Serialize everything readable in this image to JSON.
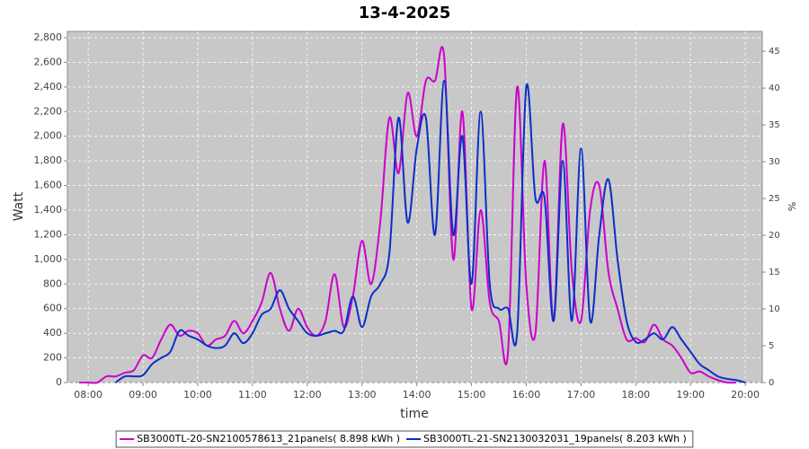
{
  "chart_data": {
    "type": "line",
    "title": "13-4-2025",
    "x_label": "time",
    "y_label": "Watt",
    "y2_label": "%",
    "x": [
      7.833,
      8,
      8.167,
      8.333,
      8.5,
      8.667,
      8.833,
      9,
      9.167,
      9.333,
      9.5,
      9.667,
      9.833,
      10,
      10.167,
      10.333,
      10.5,
      10.667,
      10.833,
      11,
      11.167,
      11.333,
      11.5,
      11.667,
      11.833,
      12,
      12.167,
      12.333,
      12.5,
      12.667,
      12.833,
      13,
      13.167,
      13.333,
      13.5,
      13.667,
      13.833,
      14,
      14.167,
      14.333,
      14.5,
      14.667,
      14.833,
      15,
      15.167,
      15.333,
      15.5,
      15.667,
      15.833,
      16,
      16.167,
      16.333,
      16.5,
      16.667,
      16.833,
      17,
      17.167,
      17.333,
      17.5,
      17.667,
      17.833,
      18,
      18.167,
      18.333,
      18.5,
      18.667,
      18.833,
      19,
      19.167,
      19.333,
      19.5,
      19.667,
      19.833,
      20
    ],
    "series": [
      {
        "name": "SB3000TL-20-SN2100578613_21panels( 8.898 kWh )",
        "color": "#cc00cc",
        "values": [
          0,
          0,
          0,
          50,
          50,
          80,
          100,
          220,
          200,
          350,
          470,
          380,
          420,
          400,
          300,
          350,
          380,
          500,
          400,
          500,
          650,
          890,
          600,
          420,
          600,
          450,
          380,
          500,
          880,
          450,
          700,
          1150,
          800,
          1300,
          2150,
          1700,
          2350,
          2000,
          2450,
          2450,
          2650,
          1000,
          2200,
          600,
          1400,
          650,
          500,
          250,
          2400,
          800,
          400,
          1800,
          500,
          2100,
          900,
          500,
          1400,
          1600,
          900,
          600,
          350,
          360,
          330,
          470,
          350,
          300,
          200,
          80,
          90,
          50,
          20,
          0,
          0,
          null
        ]
      },
      {
        "name": "SB3000TL-21-SN2130032031_19panels( 8.203 kWh )",
        "color": "#0a2fc8",
        "values": [
          null,
          null,
          null,
          null,
          0,
          50,
          50,
          60,
          150,
          200,
          250,
          420,
          380,
          350,
          300,
          280,
          300,
          400,
          320,
          400,
          550,
          600,
          750,
          600,
          500,
          400,
          380,
          400,
          420,
          420,
          700,
          450,
          700,
          800,
          1050,
          2150,
          1300,
          1900,
          2150,
          1200,
          2450,
          1200,
          2000,
          800,
          2200,
          800,
          600,
          600,
          400,
          2400,
          1500,
          1500,
          500,
          1800,
          500,
          1900,
          500,
          1200,
          1650,
          1000,
          500,
          330,
          350,
          400,
          350,
          450,
          350,
          250,
          150,
          100,
          50,
          30,
          20,
          0
        ]
      }
    ],
    "xlim": [
      7.62,
      20.31
    ],
    "xticks": [
      {
        "value": 8,
        "label": "08:00"
      },
      {
        "value": 9,
        "label": "09:00"
      },
      {
        "value": 10,
        "label": "10:00"
      },
      {
        "value": 11,
        "label": "11:00"
      },
      {
        "value": 12,
        "label": "12:00"
      },
      {
        "value": 13,
        "label": "13:00"
      },
      {
        "value": 14,
        "label": "14:00"
      },
      {
        "value": 15,
        "label": "15:00"
      },
      {
        "value": 16,
        "label": "16:00"
      },
      {
        "value": 17,
        "label": "17:00"
      },
      {
        "value": 18,
        "label": "18:00"
      },
      {
        "value": 19,
        "label": "19:00"
      },
      {
        "value": 20,
        "label": "20:00"
      }
    ],
    "ylim": [
      0,
      2851
    ],
    "yticks": [
      0,
      200,
      400,
      600,
      800,
      {
        "value": 1000,
        "label": "1,000"
      },
      {
        "value": 1200,
        "label": "1,200"
      },
      {
        "value": 1400,
        "label": "1,400"
      },
      {
        "value": 1600,
        "label": "1,600"
      },
      {
        "value": 1800,
        "label": "1,800"
      },
      {
        "value": 2000,
        "label": "2,000"
      },
      {
        "value": 2200,
        "label": "2,200"
      },
      {
        "value": 2400,
        "label": "2,400"
      },
      {
        "value": 2600,
        "label": "2,600"
      },
      {
        "value": 2800,
        "label": "2,800"
      }
    ],
    "y2lim": [
      0,
      47.7
    ],
    "y2ticks": [
      0,
      5,
      10,
      15,
      20,
      25,
      30,
      35,
      40,
      45
    ],
    "grid": true,
    "legend": "bottom"
  }
}
